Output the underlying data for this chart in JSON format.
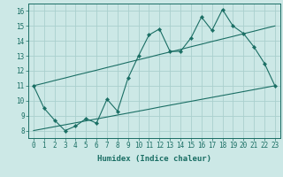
{
  "xlabel": "Humidex (Indice chaleur)",
  "ylabel": "",
  "bg_color": "#cce8e6",
  "grid_color": "#aacfcd",
  "line_color": "#1a6e64",
  "x_data": [
    0,
    1,
    2,
    3,
    4,
    5,
    6,
    7,
    8,
    9,
    10,
    11,
    12,
    13,
    14,
    15,
    16,
    17,
    18,
    19,
    20,
    21,
    22,
    23
  ],
  "y_main": [
    11,
    9.5,
    8.7,
    8.0,
    8.3,
    8.8,
    8.5,
    10.1,
    9.3,
    11.5,
    13.0,
    14.4,
    14.8,
    13.3,
    13.3,
    14.2,
    15.6,
    14.7,
    16.1,
    15.0,
    14.5,
    13.6,
    12.5,
    11.0
  ],
  "y_upper": [
    11.0,
    11.17,
    11.35,
    11.52,
    11.7,
    11.87,
    12.04,
    12.22,
    12.39,
    12.57,
    12.74,
    12.91,
    13.09,
    13.26,
    13.43,
    13.61,
    13.78,
    13.96,
    14.13,
    14.3,
    14.48,
    14.65,
    14.83,
    15.0
  ],
  "y_lower": [
    8.0,
    8.13,
    8.26,
    8.39,
    8.52,
    8.65,
    8.78,
    8.91,
    9.04,
    9.17,
    9.3,
    9.43,
    9.57,
    9.7,
    9.83,
    9.96,
    10.09,
    10.22,
    10.35,
    10.48,
    10.61,
    10.74,
    10.87,
    11.0
  ],
  "xlim": [
    -0.5,
    23.5
  ],
  "ylim": [
    7.5,
    16.5
  ],
  "yticks": [
    8,
    9,
    10,
    11,
    12,
    13,
    14,
    15,
    16
  ],
  "xticks": [
    0,
    1,
    2,
    3,
    4,
    5,
    6,
    7,
    8,
    9,
    10,
    11,
    12,
    13,
    14,
    15,
    16,
    17,
    18,
    19,
    20,
    21,
    22,
    23
  ],
  "tick_fontsize": 5.5,
  "xlabel_fontsize": 6.5,
  "lw": 0.8,
  "marker_size": 2.2
}
